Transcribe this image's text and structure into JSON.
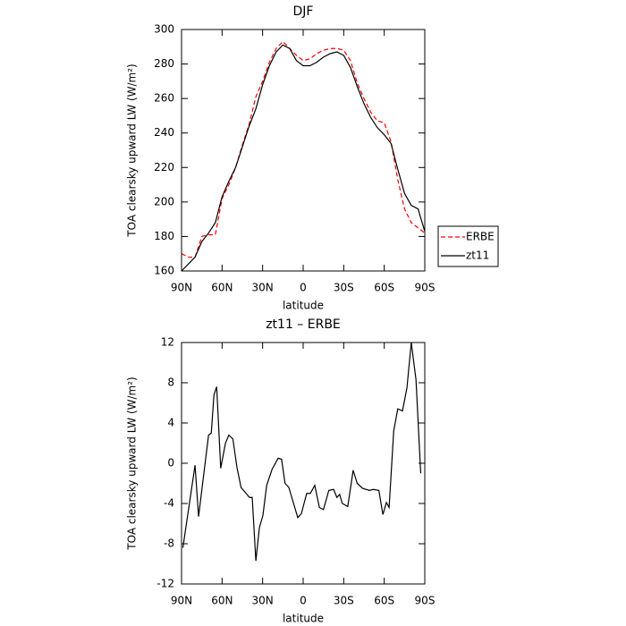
{
  "chart_data": [
    {
      "type": "line",
      "title": "DJF",
      "xlabel": "latitude",
      "ylabel": "TOA clearsky upward LW (W/m²)",
      "x": [
        90,
        85,
        80,
        75,
        70,
        65,
        60,
        55,
        50,
        45,
        40,
        35,
        30,
        25,
        20,
        15,
        10,
        5,
        0,
        -5,
        -10,
        -15,
        -20,
        -25,
        -30,
        -35,
        -40,
        -45,
        -50,
        -55,
        -60,
        -65,
        -70,
        -75,
        -80,
        -85,
        -90
      ],
      "series": [
        {
          "name": "ERBE",
          "color": "#ff0000",
          "line_style": "dashed",
          "values": [
            170,
            168,
            168,
            180,
            181,
            181,
            202,
            210,
            220,
            233,
            245,
            261,
            270,
            281,
            289,
            293,
            289,
            285,
            282,
            283,
            286,
            288,
            289,
            289,
            288,
            282,
            269,
            260,
            252,
            247,
            246,
            235,
            213,
            196,
            188,
            185,
            182
          ]
        },
        {
          "name": "zt11",
          "color": "#000000",
          "line_style": "solid",
          "values": [
            160,
            164,
            168,
            177,
            182,
            188,
            203,
            212,
            220,
            232,
            244,
            254,
            268,
            279,
            287,
            291,
            289,
            282,
            279,
            279,
            281,
            284,
            286,
            287,
            285,
            278,
            267,
            257,
            249,
            243,
            239,
            234,
            219,
            205,
            198,
            196,
            183
          ]
        }
      ],
      "xlim": [
        90,
        -90
      ],
      "xticks": [
        {
          "value": 90,
          "label": "90N"
        },
        {
          "value": 60,
          "label": "60N"
        },
        {
          "value": 30,
          "label": "30N"
        },
        0,
        {
          "value": -30,
          "label": "30S"
        },
        {
          "value": -60,
          "label": "60S"
        },
        {
          "value": -90,
          "label": "90S"
        }
      ],
      "ylim": [
        160,
        300
      ],
      "yticks": [
        160,
        180,
        200,
        220,
        240,
        260,
        280,
        300
      ],
      "legend": "right"
    },
    {
      "type": "line",
      "title": "zt11 – ERBE",
      "xlabel": "latitude",
      "ylabel": "TOA clearsky upward LW (W/m²)",
      "x": [
        89,
        81,
        80,
        77.4,
        70,
        68,
        66,
        64,
        61,
        57.5,
        55,
        52,
        49,
        46,
        39.7,
        37.7,
        35,
        32.4,
        29.8,
        27,
        23,
        18.5,
        16,
        13.4,
        10.6,
        4,
        1.3,
        -2.6,
        -5.3,
        -8.6,
        -12,
        -15,
        -19,
        -22.5,
        -25,
        -27,
        -29,
        -33,
        -37,
        -40,
        -44,
        -49,
        -52,
        -56,
        -59,
        -61.6,
        -63.6,
        -67,
        -70,
        -73.5,
        -76.8,
        -80,
        -83.5,
        -87
      ],
      "series": [
        {
          "name": "zt11 – ERBE",
          "color": "#000000",
          "line_style": "solid",
          "values": [
            -8.4,
            -1.1,
            -0.2,
            -5.3,
            2.8,
            3,
            6.8,
            7.6,
            -0.5,
            2,
            2.8,
            2.4,
            -0.4,
            -2.4,
            -3.4,
            -3.4,
            -9.7,
            -6.4,
            -5.2,
            -2.2,
            -0.6,
            0.5,
            0.4,
            -2,
            -2.4,
            -5.4,
            -5,
            -3,
            -3,
            -2.2,
            -4.4,
            -4.6,
            -2.7,
            -2.6,
            -3.4,
            -3.1,
            -4,
            -4.3,
            -0.7,
            -2,
            -2.5,
            -2.7,
            -2.6,
            -2.7,
            -5.1,
            -3.9,
            -4.4,
            3.2,
            5.4,
            5.2,
            7.5,
            12,
            8.3,
            -1
          ]
        }
      ],
      "xlim": [
        90,
        -90
      ],
      "xticks": [
        {
          "value": 90,
          "label": "90N"
        },
        {
          "value": 60,
          "label": "60N"
        },
        {
          "value": 30,
          "label": "30N"
        },
        0,
        {
          "value": -30,
          "label": "30S"
        },
        {
          "value": -60,
          "label": "60S"
        },
        {
          "value": -90,
          "label": "90S"
        }
      ],
      "ylim": [
        -12,
        12
      ],
      "yticks": [
        -12,
        -8,
        -4,
        0,
        4,
        8,
        12
      ]
    }
  ]
}
